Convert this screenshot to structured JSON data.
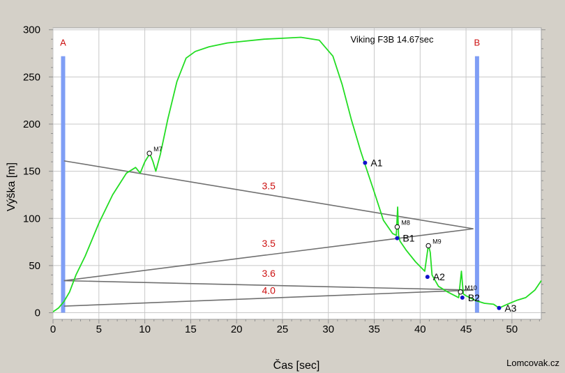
{
  "chart_data": {
    "type": "line",
    "title": "Viking F3B 14.67sec",
    "xlabel": "Čas [sec]",
    "ylabel": "Výška [m]",
    "xlim": [
      0,
      53.2
    ],
    "ylim": [
      -7,
      302
    ],
    "xticks": [
      0,
      5,
      10,
      15,
      20,
      25,
      30,
      35,
      40,
      45,
      50
    ],
    "yticks": [
      0,
      50,
      100,
      150,
      200,
      250,
      300
    ],
    "grid": true,
    "colors": {
      "altitude": "#22dd22",
      "base_lines": "#7f9ef5",
      "path": "#707070",
      "leg_times": "#cc1111",
      "waypoints": "#1111cc"
    },
    "bases": [
      {
        "name": "A",
        "x": 1.1,
        "y_top": 272
      },
      {
        "name": "B",
        "x": 46.2,
        "y_top": 272
      }
    ],
    "altitude": {
      "name": "altitude",
      "x": [
        0,
        0.6,
        1.2,
        1.8,
        2.5,
        3.5,
        5,
        6.5,
        8,
        9,
        9.5,
        10,
        10.5,
        10.7,
        10.9,
        11.2,
        11.7,
        12.5,
        13.5,
        14.5,
        15.5,
        17,
        19,
        21,
        23,
        25,
        27,
        29,
        30.5,
        31.5,
        32.5,
        33.5,
        34,
        35,
        36,
        37,
        37.4,
        37.55,
        37.65,
        37.8,
        38.5,
        39.5,
        40.5,
        40.9,
        41.1,
        41.3,
        42,
        43,
        44.2,
        44.5,
        44.7,
        45,
        46,
        47,
        48,
        48.6,
        49.5,
        50.5,
        51.5,
        52.5,
        53.2
      ],
      "y": [
        1,
        5,
        12,
        22,
        40,
        60,
        95,
        125,
        148,
        154,
        148,
        160,
        168,
        165,
        160,
        150,
        168,
        205,
        245,
        270,
        277,
        282,
        286,
        288,
        290,
        291,
        292,
        289,
        272,
        242,
        205,
        172,
        157,
        128,
        98,
        84,
        82,
        112,
        82,
        76,
        66,
        54,
        44,
        72,
        64,
        40,
        28,
        22,
        16,
        44,
        20,
        18,
        13,
        10,
        9,
        5,
        9,
        13,
        16,
        24,
        34
      ]
    },
    "flight_path": {
      "x": [
        1.2,
        45.8,
        1.2,
        45.8,
        1.2
      ],
      "y": [
        161,
        89,
        34,
        24,
        7
      ]
    },
    "leg_times": [
      {
        "label": "3.5",
        "x": 23.5,
        "y": 131
      },
      {
        "label": "3.5",
        "x": 23.5,
        "y": 70
      },
      {
        "label": "3.6",
        "x": 23.5,
        "y": 38
      },
      {
        "label": "4.0",
        "x": 23.5,
        "y": 20
      }
    ],
    "waypoints": [
      {
        "label": "A1",
        "x": 34.0,
        "y": 159
      },
      {
        "label": "B1",
        "x": 37.5,
        "y": 79
      },
      {
        "label": "A2",
        "x": 40.8,
        "y": 38
      },
      {
        "label": "B2",
        "x": 44.6,
        "y": 16
      },
      {
        "label": "A3",
        "x": 48.6,
        "y": 5
      }
    ],
    "markers": [
      {
        "label": "M7",
        "x": 10.5,
        "y": 169
      },
      {
        "label": "M8",
        "x": 37.5,
        "y": 91
      },
      {
        "label": "M9",
        "x": 40.9,
        "y": 71
      },
      {
        "label": "M10",
        "x": 44.4,
        "y": 22
      }
    ]
  },
  "footer": {
    "credit": "Lomcovak.cz"
  }
}
